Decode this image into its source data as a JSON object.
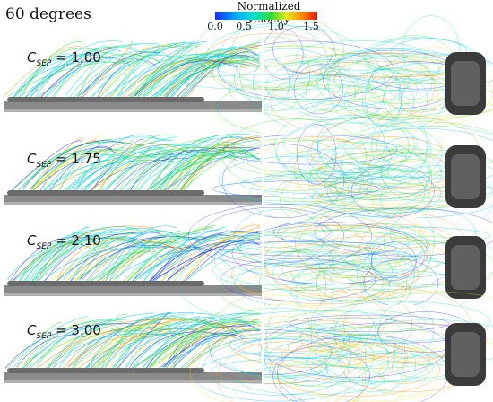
{
  "figure": {
    "title": "60 degrees",
    "colorbar": {
      "label": "Normalized velocity",
      "ticks": [
        "0.0",
        "0.5",
        "1.0",
        "1.5"
      ],
      "colors": [
        "#1a2cff",
        "#00b4ff",
        "#00e0c8",
        "#33dd33",
        "#e8e81a",
        "#ff8a00",
        "#e8100a"
      ]
    },
    "panels": [
      {
        "symbol": "C",
        "subscript": "SEP",
        "value": "= 1.00"
      },
      {
        "symbol": "C",
        "subscript": "SEP",
        "value": "= 1.75"
      },
      {
        "symbol": "C",
        "subscript": "SEP",
        "value": "= 2.10"
      },
      {
        "symbol": "C",
        "subscript": "SEP",
        "value": "= 3.00"
      }
    ]
  }
}
